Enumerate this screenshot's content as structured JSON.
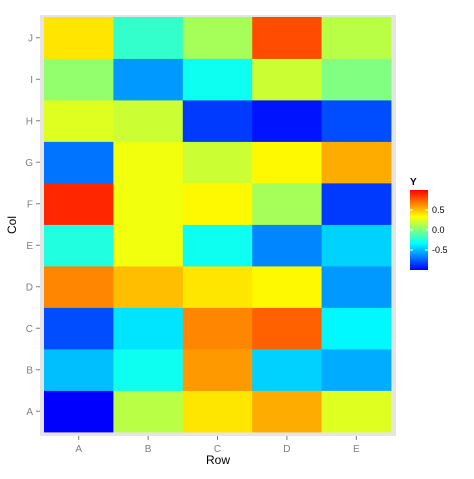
{
  "chart_data": {
    "type": "heatmap",
    "title": "",
    "xlabel": "Row",
    "ylabel": "Col",
    "x_categories": [
      "A",
      "B",
      "C",
      "D",
      "E"
    ],
    "y_categories": [
      "A",
      "B",
      "C",
      "D",
      "E",
      "F",
      "G",
      "H",
      "I",
      "J"
    ],
    "values": [
      [
        -1.0,
        0.15,
        0.4,
        0.55,
        0.25
      ],
      [
        -0.5,
        -0.3,
        0.6,
        -0.45,
        -0.55
      ],
      [
        -0.8,
        -0.4,
        0.65,
        0.75,
        -0.35
      ],
      [
        0.65,
        0.5,
        0.4,
        0.35,
        -0.6
      ],
      [
        -0.25,
        0.3,
        -0.3,
        -0.65,
        -0.45
      ],
      [
        0.9,
        0.3,
        0.35,
        0.1,
        -0.85
      ],
      [
        -0.7,
        0.3,
        0.2,
        0.35,
        0.55
      ],
      [
        0.25,
        0.2,
        -0.85,
        -0.95,
        -0.8
      ],
      [
        0.05,
        -0.6,
        -0.3,
        0.2,
        0.0
      ],
      [
        0.4,
        -0.2,
        0.1,
        0.8,
        0.15
      ]
    ],
    "legend": {
      "title": "Y",
      "ticks": [
        0.5,
        0.0,
        -0.5
      ],
      "tick_labels": [
        "0.5",
        "0.0",
        "-0.5"
      ],
      "range": [
        -1.0,
        1.0
      ],
      "position": "right"
    },
    "colormap": [
      "#0000FF",
      "#00FFFF",
      "#FFFF00",
      "#FF0000"
    ],
    "panel_background": "#E5E5E5",
    "grid": false
  }
}
